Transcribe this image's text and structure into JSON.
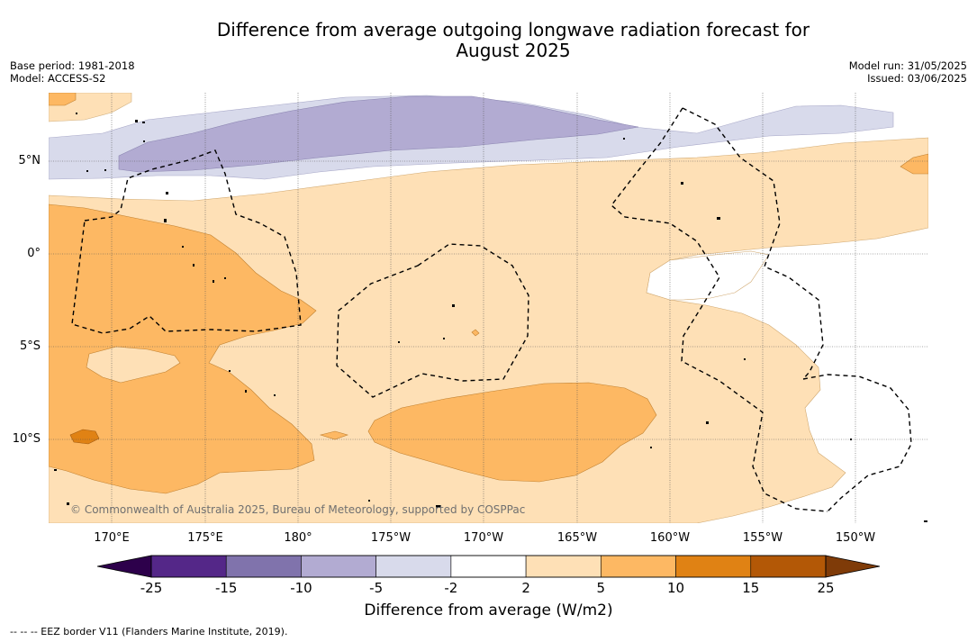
{
  "title_line1": "Difference from average outgoing longwave radiation forecast for",
  "title_line2": "August 2025",
  "meta_left": [
    "Base period: 1981-2018",
    "Model: ACCESS-S2"
  ],
  "meta_right": [
    "Model run: 31/05/2025",
    "Issued: 03/06/2025"
  ],
  "lat_labels": [
    "5°N",
    "0°",
    "5°S",
    "10°S"
  ],
  "lon_labels": [
    "170°E",
    "175°E",
    "180°",
    "175°W",
    "170°W",
    "165°W",
    "160°W",
    "155°W",
    "150°W"
  ],
  "copyright": "© Commonwealth of Australia 2025, Bureau of Meteorology, supported by COSPPac",
  "colorbar": {
    "title": "Difference from average (W/m2)",
    "tick_labels": [
      "-25",
      "-15",
      "-10",
      "-5",
      "-2",
      "2",
      "5",
      "10",
      "15",
      "25"
    ],
    "colors": [
      "#542788",
      "#8073ac",
      "#b2abd2",
      "#d8daeb",
      "#ffffff",
      "#fee0b6",
      "#fdb863",
      "#e08214",
      "#b35806"
    ],
    "low_extend_color": "#2d004b",
    "high_extend_color": "#7f3b08"
  },
  "footnote": "-- -- -- EEZ border V11 (Flanders Marine Institute, 2019)."
}
